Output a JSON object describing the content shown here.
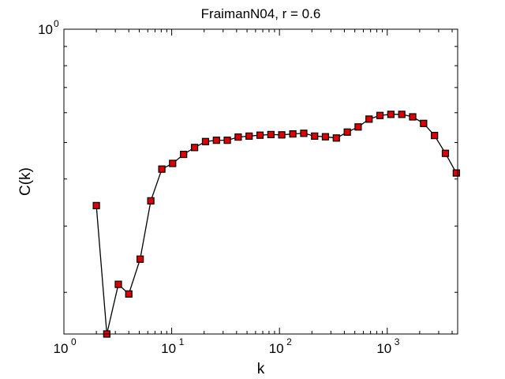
{
  "chart_data": {
    "type": "line",
    "title": "FraimanN04, r = 0.6",
    "xlabel": "k",
    "ylabel": "C(k)",
    "x_scale": "log",
    "y_scale": "log",
    "xlim": [
      1,
      4500
    ],
    "ylim": [
      0.155,
      1.0
    ],
    "grid": false,
    "x_ticks": [
      {
        "value": 1,
        "base": "10",
        "exp": "0"
      },
      {
        "value": 10,
        "base": "10",
        "exp": "1"
      },
      {
        "value": 100,
        "base": "10",
        "exp": "2"
      },
      {
        "value": 1000,
        "base": "10",
        "exp": "3"
      }
    ],
    "y_ticks": [
      {
        "value": 1,
        "base": "10",
        "exp": "0"
      }
    ],
    "marker": "square",
    "marker_color": "#dd0000",
    "line_color": "#000000",
    "series": [
      {
        "x": [
          2,
          2.5,
          3.2,
          4,
          5.1,
          6.4,
          8.1,
          10.2,
          12.9,
          16.3,
          20.6,
          26,
          32.8,
          41.4,
          52.3,
          66,
          83.3,
          105,
          133,
          168,
          212,
          267,
          337,
          426,
          537,
          678,
          856,
          1080,
          1364,
          1722,
          2174,
          2745,
          3465,
          4375
        ],
        "y": [
          0.34,
          0.155,
          0.21,
          0.198,
          0.245,
          0.35,
          0.425,
          0.44,
          0.465,
          0.485,
          0.503,
          0.507,
          0.507,
          0.517,
          0.52,
          0.523,
          0.525,
          0.524,
          0.527,
          0.529,
          0.52,
          0.518,
          0.514,
          0.533,
          0.55,
          0.577,
          0.59,
          0.594,
          0.594,
          0.585,
          0.562,
          0.522,
          0.468,
          0.415
        ]
      }
    ]
  }
}
